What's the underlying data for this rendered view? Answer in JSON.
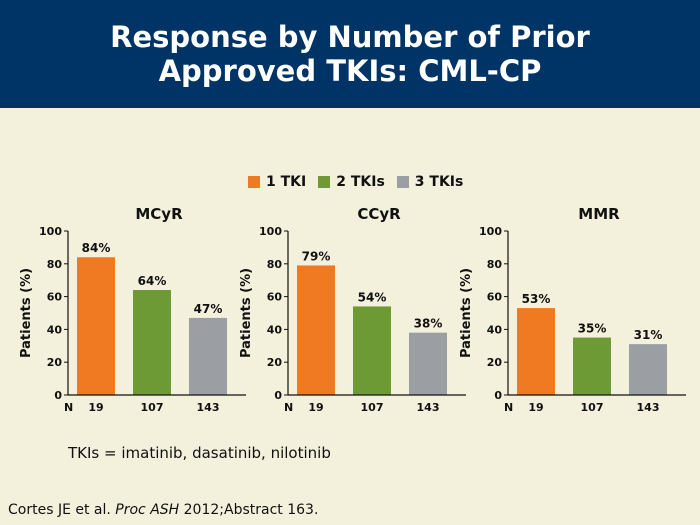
{
  "slide": {
    "title_line1": "Response by Number of Prior",
    "title_line2": "Approved TKIs: CML-CP",
    "note": "TKIs = imatinib, dasatinib, nilotinib",
    "citation_prefix": "Cortes JE et al. ",
    "citation_journal": "Proc ASH",
    "citation_suffix": " 2012;Abstract 163.",
    "header_color": "#003366",
    "background_color": "#f3f0dc"
  },
  "legend": [
    {
      "label": "1 TKI",
      "color": "#f07a22"
    },
    {
      "label": "2 TKIs",
      "color": "#6e9a35"
    },
    {
      "label": "3 TKIs",
      "color": "#9b9ea3"
    }
  ],
  "chart_data": [
    {
      "type": "bar",
      "title": "MCyR",
      "ylabel": "Patients (%)",
      "ylim": [
        0,
        100
      ],
      "yticks": [
        "0",
        "20",
        "40",
        "60",
        "80",
        "100"
      ],
      "n_label": "N",
      "categories": [
        "19",
        "107",
        "143"
      ],
      "values": [
        84,
        64,
        47
      ],
      "data_labels": [
        "84%",
        "64%",
        "47%"
      ],
      "colors": [
        "#f07a22",
        "#6e9a35",
        "#9b9ea3"
      ]
    },
    {
      "type": "bar",
      "title": "CCyR",
      "ylabel": "Patients (%)",
      "ylim": [
        0,
        100
      ],
      "yticks": [
        "0",
        "20",
        "40",
        "60",
        "80",
        "100"
      ],
      "n_label": "N",
      "categories": [
        "19",
        "107",
        "143"
      ],
      "values": [
        79,
        54,
        38
      ],
      "data_labels": [
        "79%",
        "54%",
        "38%"
      ],
      "colors": [
        "#f07a22",
        "#6e9a35",
        "#9b9ea3"
      ]
    },
    {
      "type": "bar",
      "title": "MMR",
      "ylabel": "Patients (%)",
      "ylim": [
        0,
        100
      ],
      "yticks": [
        "0",
        "20",
        "40",
        "60",
        "80",
        "100"
      ],
      "n_label": "N",
      "categories": [
        "19",
        "107",
        "143"
      ],
      "values": [
        53,
        35,
        31
      ],
      "data_labels": [
        "53%",
        "35%",
        "31%"
      ],
      "colors": [
        "#f07a22",
        "#6e9a35",
        "#9b9ea3"
      ]
    }
  ]
}
